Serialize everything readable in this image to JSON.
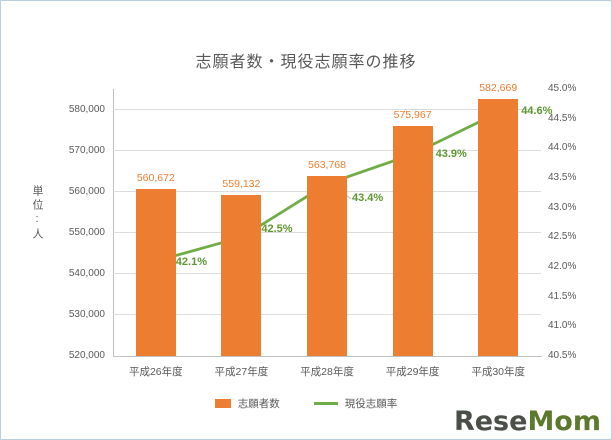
{
  "chart_data": {
    "type": "bar",
    "combo": "bar+line",
    "title": "志願者数・現役志願率の推移",
    "categories": [
      "平成26年度",
      "平成27年度",
      "平成28年度",
      "平成29年度",
      "平成30年度"
    ],
    "series": [
      {
        "name": "志願者数",
        "type": "bar",
        "axis": "left",
        "color": "#ED7D31",
        "label_color": "#ED7D31",
        "values": [
          560672,
          559132,
          563768,
          575967,
          582669
        ],
        "labels": [
          "560,672",
          "559,132",
          "563,768",
          "575,967",
          "582,669"
        ]
      },
      {
        "name": "現役志願率",
        "type": "line",
        "axis": "right",
        "color": "#70AD47",
        "label_color": "#5E9732",
        "values": [
          42.1,
          42.5,
          43.4,
          43.9,
          44.6
        ],
        "labels": [
          "42.1%",
          "42.5%",
          "43.4%",
          "43.9%",
          "44.6%"
        ]
      }
    ],
    "left_axis": {
      "title": "単位:人",
      "min": 520000,
      "max": 585000,
      "tick_step": 10000,
      "ticks": [
        "520,000",
        "530,000",
        "540,000",
        "550,000",
        "560,000",
        "570,000",
        "580,000"
      ]
    },
    "right_axis": {
      "min": 40.5,
      "max": 45.0,
      "tick_step": 0.5,
      "ticks": [
        "40.5%",
        "41.0%",
        "41.5%",
        "42.0%",
        "42.5%",
        "43.0%",
        "43.5%",
        "44.0%",
        "44.5%",
        "45.0%"
      ]
    },
    "grid": true,
    "legend_position": "bottom"
  },
  "watermark": {
    "text": "ReseMom",
    "part1": "Rese",
    "part2": "Mom"
  }
}
